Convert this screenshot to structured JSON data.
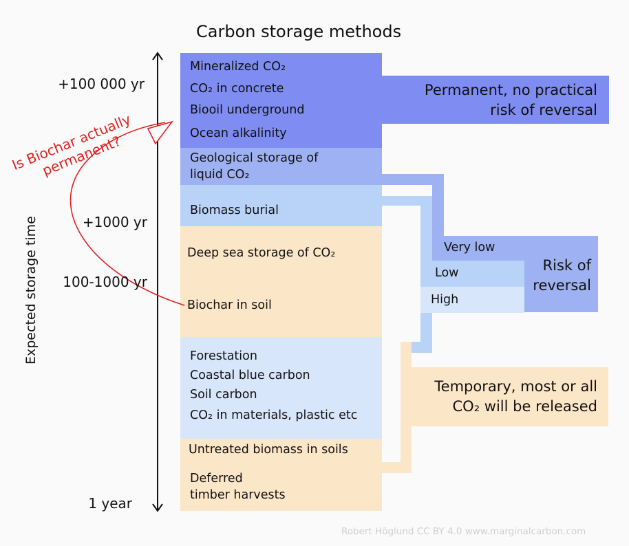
{
  "title": "Carbon storage methods",
  "y_axis": {
    "label": "Expected storage time",
    "ticks": [
      "+100 000 yr",
      "+1000 yr",
      "100-1000 yr",
      "1 year"
    ]
  },
  "colors": {
    "permanent_dark": "#7f8cf2",
    "permanent_mid": "#9eb1f2",
    "medium_blue": "#b9d2f8",
    "pale_blue": "#d8e6fb",
    "temporary": "#fce6c8",
    "annotation": "#e02020",
    "background": "#fafafa"
  },
  "methods": {
    "mineralized": "Mineralized CO₂",
    "concrete": "CO₂ in concrete",
    "biooil": "Biooil underground",
    "ocean_alk": "Ocean alkalinity",
    "geo1": "Geological storage of",
    "geo2": "liquid CO₂",
    "burial": "Biomass burial",
    "deep_sea": "Deep sea storage of CO₂",
    "biochar": "Biochar in soil",
    "forestation": "Forestation",
    "coastal": "Coastal blue carbon",
    "soil_carbon": "Soil carbon",
    "materials": "CO₂ in materials, plastic etc",
    "untreated": "Untreated biomass in soils",
    "deferred1": "Deferred",
    "deferred2": "timber harvests"
  },
  "categories": {
    "permanent1": "Permanent, no practical",
    "permanent2": "risk of reversal",
    "temporary1": "Temporary, most or all",
    "temporary2": "CO₂ will be released"
  },
  "risk": {
    "title1": "Risk of",
    "title2": "reversal",
    "very_low": "Very low",
    "low": "Low",
    "high": "High"
  },
  "annotation": {
    "line1": "Is Biochar actually",
    "line2": "permanent?"
  },
  "credit": "Robert Höglund CC BY 4.0  www.marginalcarbon.com"
}
